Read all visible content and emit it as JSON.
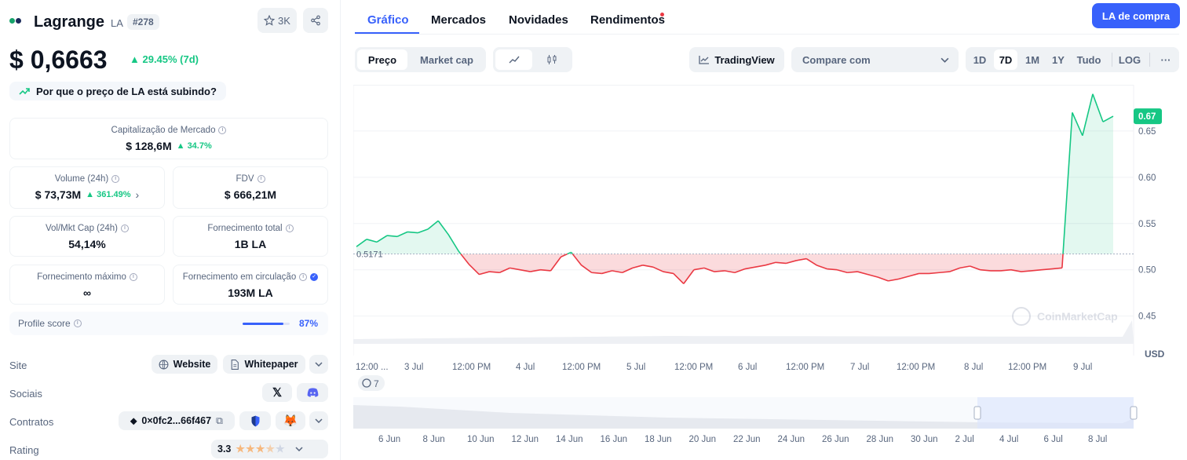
{
  "coin": {
    "name": "Lagrange",
    "symbol": "LA",
    "rank": "#278",
    "watchlist_count": "3K",
    "price": "$ 0,6663",
    "price_change": "29.45% (7d)",
    "why_rising": "Por que o preço de LA está subindo?"
  },
  "stats": {
    "market_cap": {
      "label": "Capitalização de Mercado",
      "value": "$ 128,6M",
      "change": "34.7%"
    },
    "volume": {
      "label": "Volume (24h)",
      "value": "$ 73,73M",
      "change": "361.49%"
    },
    "fdv": {
      "label": "FDV",
      "value": "$ 666,21M"
    },
    "vol_mkt_cap": {
      "label": "Vol/Mkt Cap (24h)",
      "value": "54,14%"
    },
    "total_supply": {
      "label": "Fornecimento total",
      "value": "1B LA"
    },
    "max_supply": {
      "label": "Fornecimento máximo",
      "value": "∞"
    },
    "circulating_supply": {
      "label": "Fornecimento em circulação",
      "value": "193M LA"
    }
  },
  "profile_score": {
    "label": "Profile score",
    "value": "87%",
    "fraction": 0.87
  },
  "links": {
    "site_label": "Site",
    "website": "Website",
    "whitepaper": "Whitepaper",
    "socials_label": "Sociais",
    "contracts_label": "Contratos",
    "contract": "0×0fc2...66f467",
    "rating_label": "Rating",
    "rating": "3.3",
    "rating_stars": 3.3
  },
  "tabs": [
    {
      "label": "Gráfico"
    },
    {
      "label": "Mercados"
    },
    {
      "label": "Novidades"
    },
    {
      "label": "Rendimentos"
    }
  ],
  "buy_label": "LA de compra",
  "toolbar": {
    "price": "Preço",
    "market_cap": "Market cap",
    "tradingview": "TradingView",
    "compare": "Compare com",
    "ranges": [
      "1D",
      "7D",
      "1M",
      "1Y",
      "Tudo"
    ],
    "log": "LOG",
    "more": "···"
  },
  "colors": {
    "accent": "#3861fb",
    "up": "#16c784",
    "down": "#ea3943"
  },
  "chart_data": {
    "type": "line",
    "baseline": 0.5171,
    "baseline_label": "0.5171",
    "current_label": "0.67",
    "y_ticks": [
      "0.65",
      "0.60",
      "0.55",
      "0.50",
      "0.45"
    ],
    "ylim": [
      0.42,
      0.7
    ],
    "unit": "USD",
    "x_ticks": [
      "12:00 ...",
      "3 Jul",
      "12:00 PM",
      "4 Jul",
      "12:00 PM",
      "5 Jul",
      "12:00 PM",
      "6 Jul",
      "12:00 PM",
      "7 Jul",
      "12:00 PM",
      "8 Jul",
      "12:00 PM",
      "9 Jul"
    ],
    "series": [
      {
        "values": [
          0.525,
          0.533,
          0.53,
          0.537,
          0.536,
          0.541,
          0.54,
          0.544,
          0.553,
          0.538,
          0.52,
          0.506,
          0.495,
          0.498,
          0.497,
          0.502,
          0.5,
          0.498,
          0.5,
          0.499,
          0.514,
          0.519,
          0.505,
          0.497,
          0.496,
          0.499,
          0.497,
          0.502,
          0.505,
          0.503,
          0.498,
          0.496,
          0.485,
          0.5,
          0.502,
          0.498,
          0.499,
          0.497,
          0.501,
          0.503,
          0.505,
          0.508,
          0.507,
          0.51,
          0.512,
          0.505,
          0.501,
          0.5,
          0.497,
          0.498,
          0.495,
          0.492,
          0.488,
          0.49,
          0.493,
          0.496,
          0.496,
          0.497,
          0.498,
          0.502,
          0.504,
          0.5,
          0.499,
          0.499,
          0.5,
          0.498,
          0.499,
          0.5,
          0.501,
          0.502,
          0.67,
          0.645,
          0.69,
          0.66,
          0.666
        ]
      }
    ],
    "navigator_ticks": [
      "6 Jun",
      "8 Jun",
      "10 Jun",
      "12 Jun",
      "14 Jun",
      "16 Jun",
      "18 Jun",
      "20 Jun",
      "22 Jun",
      "24 Jun",
      "26 Jun",
      "28 Jun",
      "30 Jun",
      "2 Jul",
      "4 Jul",
      "6 Jul",
      "8 Jul"
    ],
    "events_badge": "7",
    "watermark": "CoinMarketCap"
  }
}
